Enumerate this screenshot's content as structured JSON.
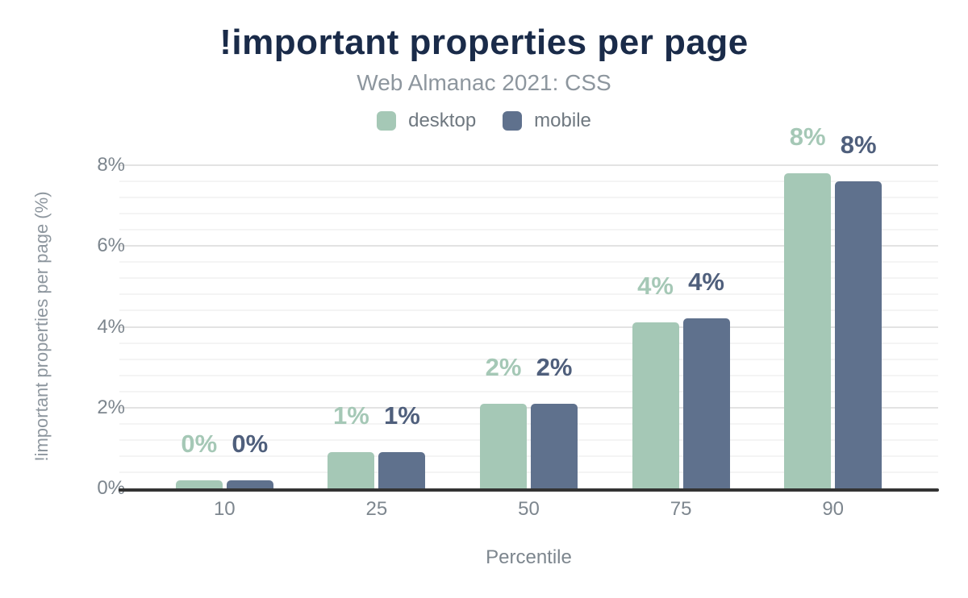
{
  "header": {
    "title": "!important properties per page",
    "subtitle": "Web Almanac 2021: CSS"
  },
  "legend": [
    {
      "label": "desktop",
      "color": "#a5c8b6"
    },
    {
      "label": "mobile",
      "color": "#5f718d"
    }
  ],
  "chart_data": {
    "type": "bar",
    "title": "!important properties per page",
    "subtitle": "Web Almanac 2021: CSS",
    "categories": [
      "10",
      "25",
      "50",
      "75",
      "90"
    ],
    "series": [
      {
        "name": "desktop",
        "color": "#a5c8b6",
        "label_color": "#a5c8b6",
        "values": [
          0.2,
          0.9,
          2.1,
          4.1,
          7.8
        ],
        "labels": [
          "0%",
          "1%",
          "2%",
          "4%",
          "8%"
        ]
      },
      {
        "name": "mobile",
        "color": "#5f718d",
        "label_color": "#4f5f7c",
        "values": [
          0.2,
          0.9,
          2.1,
          4.2,
          7.6
        ],
        "labels": [
          "0%",
          "1%",
          "2%",
          "4%",
          "8%"
        ]
      }
    ],
    "xlabel": "Percentile",
    "ylabel": "!important properties per page (%)",
    "ylim": [
      0,
      8
    ],
    "yticks": [
      {
        "value": 0,
        "label": "0%"
      },
      {
        "value": 2,
        "label": "2%"
      },
      {
        "value": 4,
        "label": "4%"
      },
      {
        "value": 6,
        "label": "6%"
      },
      {
        "value": 8,
        "label": "8%"
      }
    ],
    "grid": {
      "major_step": 2,
      "minor_step": 0.4,
      "legend_position": "top"
    },
    "colors": {
      "title": "#1a2b49",
      "subtitle_text": "#8d969e",
      "tick_text": "#7d868e",
      "axis_line": "#333333",
      "major_grid": "#e3e3e3",
      "minor_grid": "#f4f4f4"
    }
  }
}
